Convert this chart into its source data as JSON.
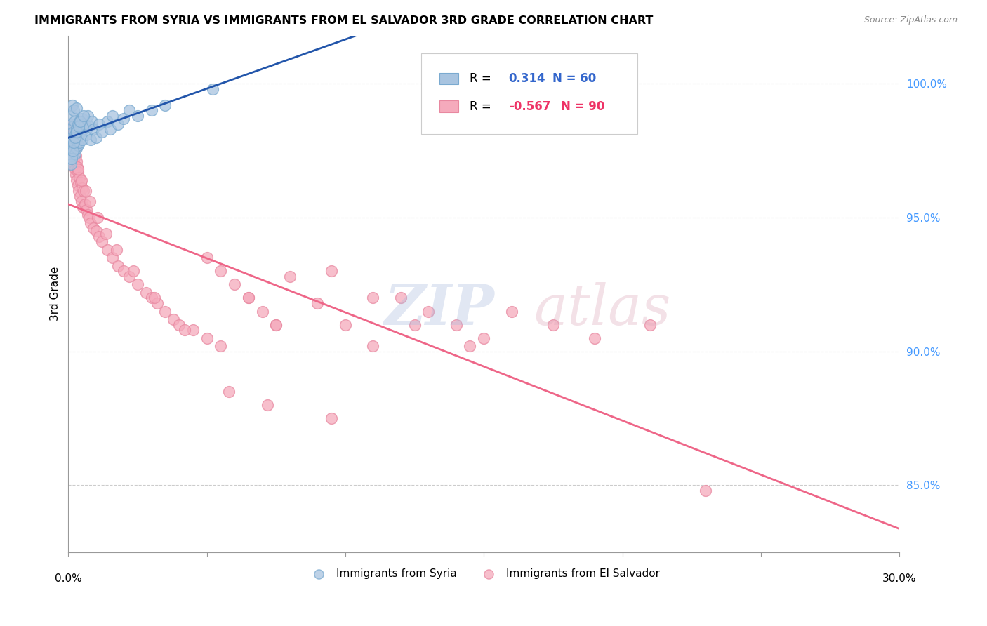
{
  "title": "IMMIGRANTS FROM SYRIA VS IMMIGRANTS FROM EL SALVADOR 3RD GRADE CORRELATION CHART",
  "source": "Source: ZipAtlas.com",
  "ylabel": "3rd Grade",
  "y_ticks": [
    85.0,
    90.0,
    95.0,
    100.0
  ],
  "y_tick_labels": [
    "85.0%",
    "90.0%",
    "95.0%",
    "100.0%"
  ],
  "x_min": 0.0,
  "x_max": 30.0,
  "y_min": 82.5,
  "y_max": 101.8,
  "blue_color": "#A8C4E0",
  "pink_color": "#F5AABC",
  "blue_line_color": "#2255AA",
  "pink_line_color": "#EE6688",
  "blue_edge_color": "#7aaad0",
  "pink_edge_color": "#e888a0",
  "legend_blue_r": "0.314",
  "legend_blue_n": "60",
  "legend_pink_r": "-0.567",
  "legend_pink_n": "90",
  "syria_x": [
    0.05,
    0.08,
    0.1,
    0.1,
    0.12,
    0.12,
    0.15,
    0.15,
    0.15,
    0.18,
    0.18,
    0.2,
    0.2,
    0.2,
    0.22,
    0.22,
    0.25,
    0.25,
    0.28,
    0.3,
    0.3,
    0.3,
    0.32,
    0.35,
    0.35,
    0.4,
    0.4,
    0.45,
    0.5,
    0.5,
    0.55,
    0.6,
    0.65,
    0.7,
    0.75,
    0.8,
    0.85,
    0.9,
    1.0,
    1.1,
    1.2,
    1.4,
    1.5,
    1.6,
    1.8,
    2.0,
    2.2,
    2.5,
    3.0,
    3.5,
    0.08,
    0.12,
    0.16,
    0.2,
    0.25,
    0.3,
    0.38,
    0.42,
    0.55,
    5.2
  ],
  "syria_y": [
    97.2,
    97.5,
    97.8,
    98.5,
    98.0,
    98.8,
    97.3,
    97.9,
    99.2,
    97.6,
    98.4,
    97.5,
    98.2,
    99.0,
    97.8,
    98.6,
    97.4,
    98.1,
    97.9,
    97.6,
    98.3,
    99.1,
    98.0,
    97.7,
    98.5,
    97.8,
    98.6,
    98.2,
    97.9,
    98.7,
    98.3,
    98.5,
    98.1,
    98.8,
    98.4,
    97.9,
    98.6,
    98.3,
    98.0,
    98.5,
    98.2,
    98.6,
    98.3,
    98.8,
    98.5,
    98.7,
    99.0,
    98.8,
    99.0,
    99.2,
    97.0,
    97.2,
    97.5,
    97.8,
    98.0,
    98.2,
    98.4,
    98.6,
    98.8,
    99.8
  ],
  "salvador_x": [
    0.05,
    0.08,
    0.1,
    0.12,
    0.15,
    0.15,
    0.18,
    0.18,
    0.2,
    0.2,
    0.22,
    0.25,
    0.25,
    0.28,
    0.28,
    0.3,
    0.3,
    0.32,
    0.35,
    0.35,
    0.38,
    0.4,
    0.42,
    0.45,
    0.48,
    0.5,
    0.52,
    0.55,
    0.6,
    0.65,
    0.7,
    0.75,
    0.8,
    0.9,
    1.0,
    1.1,
    1.2,
    1.4,
    1.6,
    1.8,
    2.0,
    2.2,
    2.5,
    2.8,
    3.0,
    3.2,
    3.5,
    3.8,
    4.0,
    4.5,
    5.0,
    5.5,
    6.0,
    6.5,
    7.0,
    7.5,
    8.0,
    9.0,
    10.0,
    11.0,
    12.0,
    13.0,
    14.0,
    15.0,
    5.0,
    5.5,
    6.5,
    7.5,
    9.5,
    11.0,
    12.5,
    14.5,
    16.0,
    17.5,
    19.0,
    21.0,
    23.0,
    0.35,
    0.48,
    0.62,
    0.78,
    1.05,
    1.35,
    1.75,
    2.35,
    3.1,
    4.2,
    5.8,
    7.2,
    9.5
  ],
  "salvador_y": [
    98.2,
    98.5,
    97.8,
    98.0,
    97.6,
    98.3,
    97.4,
    97.9,
    97.2,
    97.7,
    97.0,
    97.5,
    96.8,
    97.3,
    96.6,
    97.1,
    96.4,
    96.9,
    96.2,
    96.7,
    96.0,
    96.5,
    95.8,
    96.3,
    95.6,
    96.1,
    95.4,
    96.0,
    95.5,
    95.3,
    95.1,
    95.0,
    94.8,
    94.6,
    94.5,
    94.3,
    94.1,
    93.8,
    93.5,
    93.2,
    93.0,
    92.8,
    92.5,
    92.2,
    92.0,
    91.8,
    91.5,
    91.2,
    91.0,
    90.8,
    90.5,
    90.2,
    92.5,
    92.0,
    91.5,
    91.0,
    92.8,
    91.8,
    91.0,
    90.2,
    92.0,
    91.5,
    91.0,
    90.5,
    93.5,
    93.0,
    92.0,
    91.0,
    93.0,
    92.0,
    91.0,
    90.2,
    91.5,
    91.0,
    90.5,
    91.0,
    84.8,
    96.8,
    96.4,
    96.0,
    95.6,
    95.0,
    94.4,
    93.8,
    93.0,
    92.0,
    90.8,
    88.5,
    88.0,
    87.5
  ]
}
